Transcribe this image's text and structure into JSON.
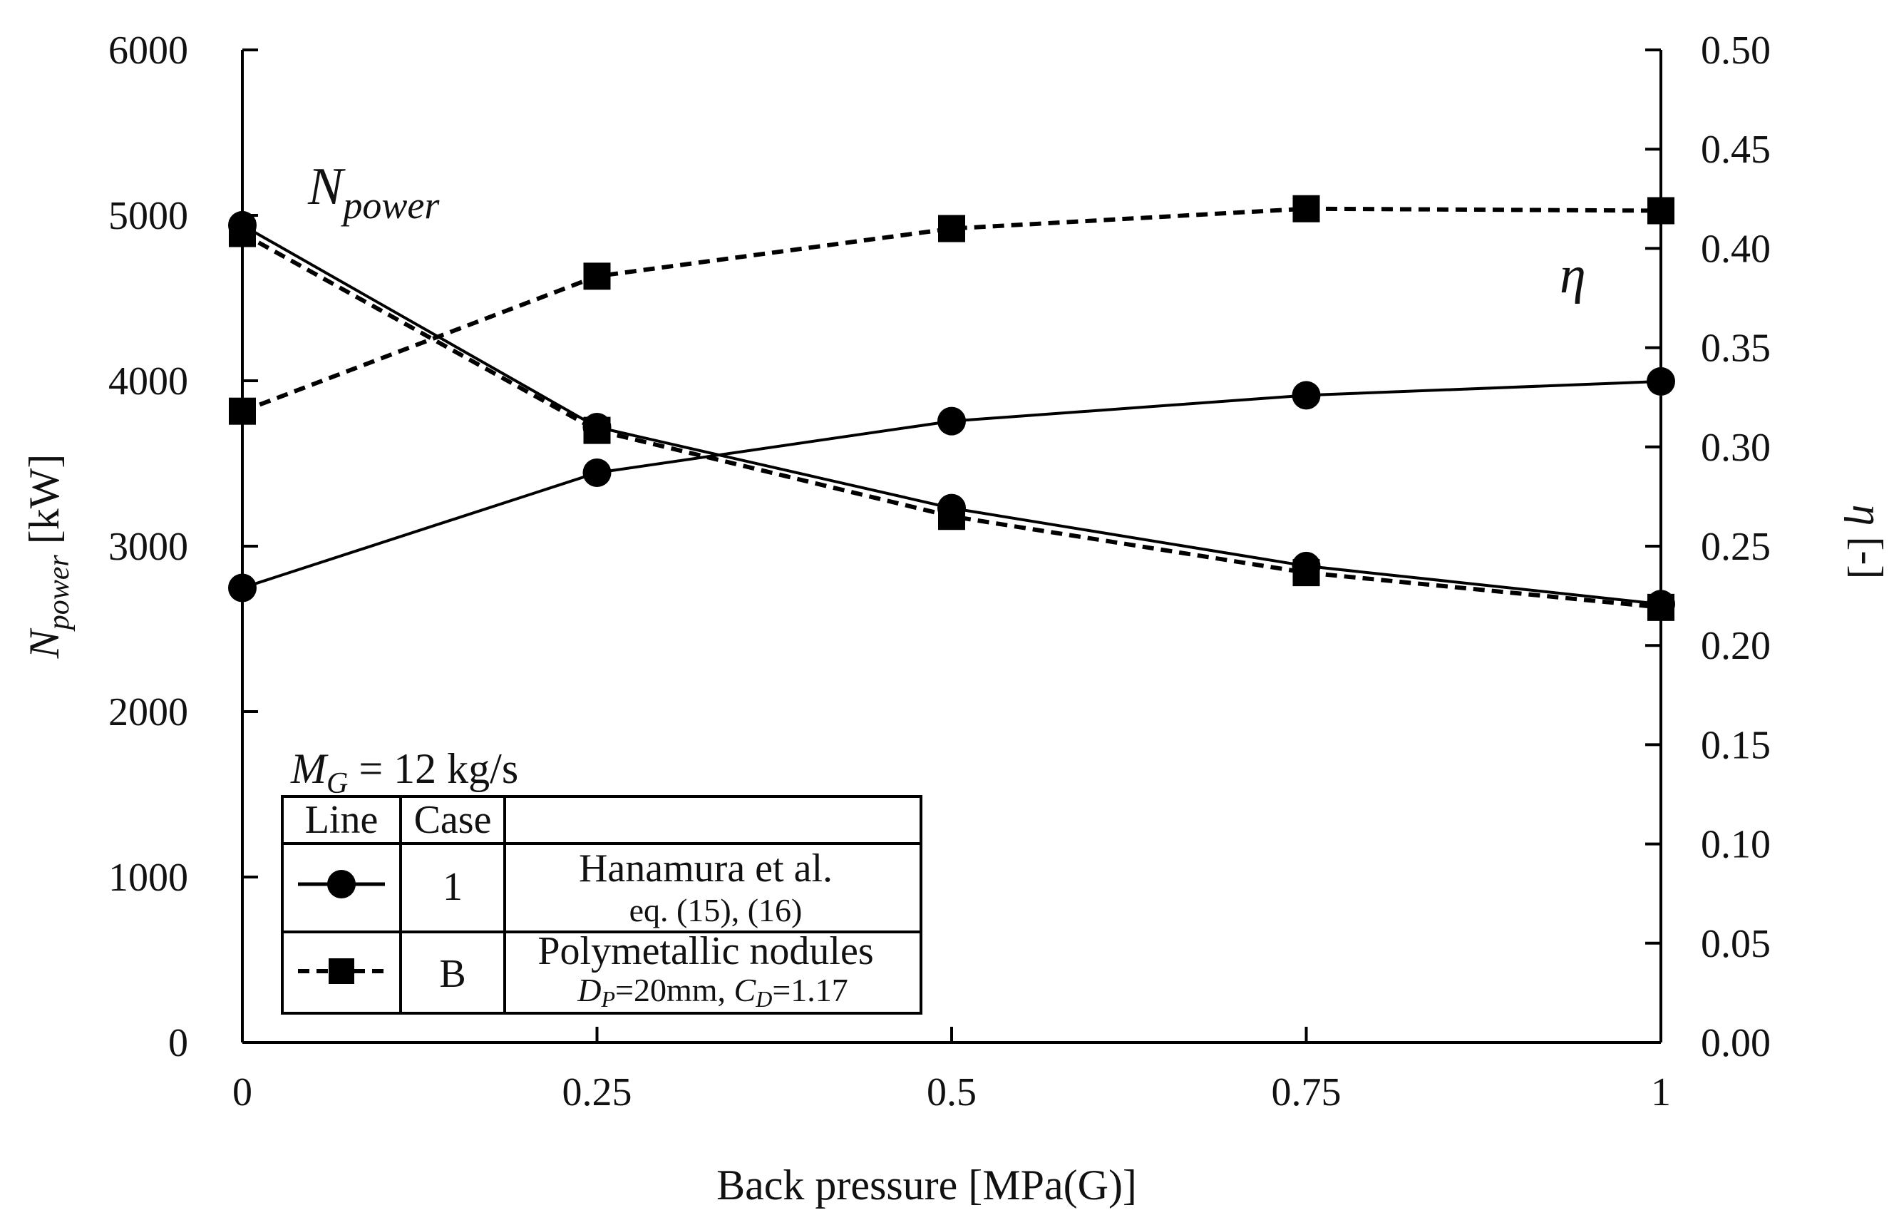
{
  "chart_data": {
    "type": "line",
    "x": [
      0,
      0.25,
      0.5,
      0.75,
      1
    ],
    "x_tick_labels": [
      "0",
      "0.25",
      "0.5",
      "0.75",
      "1"
    ],
    "xlim": [
      0,
      1
    ],
    "xlabel": "Back pressure [MPa(G)]",
    "left_axis": {
      "label_main": "N",
      "label_sub": "power",
      "label_unit": " [kW]",
      "ylim": [
        0,
        6000
      ],
      "ticks": [
        "0",
        "1000",
        "2000",
        "3000",
        "4000",
        "5000",
        "6000"
      ]
    },
    "right_axis": {
      "label_main": "η",
      "label_unit": " [-]",
      "ylim": [
        0,
        0.5
      ],
      "ticks": [
        "0.00",
        "0.05",
        "0.10",
        "0.15",
        "0.20",
        "0.25",
        "0.30",
        "0.35",
        "0.40",
        "0.45",
        "0.50"
      ]
    },
    "series": [
      {
        "name": "Case 1 N_power",
        "case": "1",
        "axis": "left",
        "style": "solid",
        "marker": "circle",
        "values": [
          4940,
          3720,
          3230,
          2880,
          2650
        ]
      },
      {
        "name": "Case B N_power",
        "case": "B",
        "axis": "left",
        "style": "dashed",
        "marker": "square",
        "values": [
          4890,
          3700,
          3180,
          2840,
          2630
        ]
      },
      {
        "name": "Case 1 η",
        "case": "1",
        "axis": "right",
        "style": "solid",
        "marker": "circle",
        "values": [
          0.229,
          0.287,
          0.313,
          0.326,
          0.333
        ]
      },
      {
        "name": "Case B η",
        "case": "B",
        "axis": "right",
        "style": "dashed",
        "marker": "square",
        "values": [
          0.318,
          0.386,
          0.41,
          0.42,
          0.419
        ]
      }
    ],
    "annotations": {
      "npower_main": "N",
      "npower_sub": "power",
      "eta": "η"
    },
    "legend": {
      "placement": "bottom-left",
      "condition_main": "M",
      "condition_sub": "G",
      "condition_value": " = 12 kg/s",
      "header_line": "Line",
      "header_case": "Case",
      "rows": [
        {
          "case": "1",
          "desc1": "Hanamura et al.",
          "desc2": "eq. (15),  (16)"
        },
        {
          "case": "B",
          "desc1": "Polymetallic  nodules",
          "desc2_p1": "D",
          "desc2_p1sub": "P",
          "desc2_p1val": "=20mm,  ",
          "desc2_p2": "C",
          "desc2_p2sub": "D",
          "desc2_p2val": "=1.17"
        }
      ]
    },
    "colors": {
      "line": "#000000",
      "background": "#ffffff"
    }
  }
}
